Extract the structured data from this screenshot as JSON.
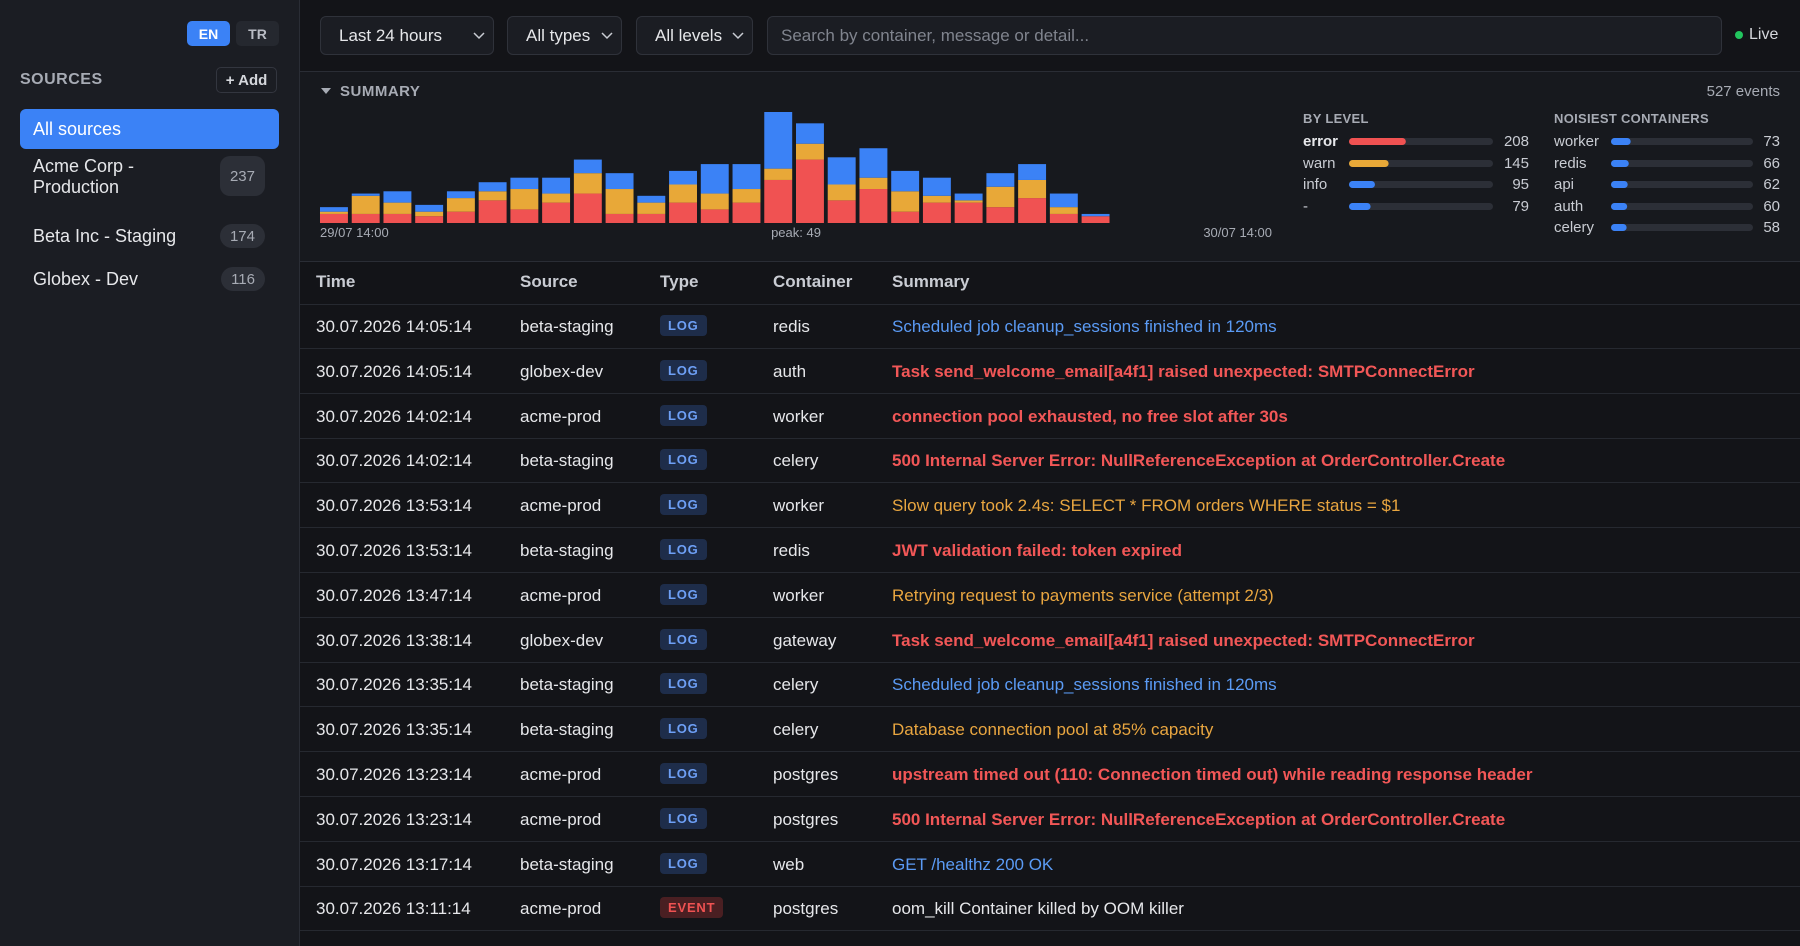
{
  "language": {
    "options": [
      "EN",
      "TR"
    ],
    "active": 0
  },
  "sidebar": {
    "title": "SOURCES",
    "add": "+ Add",
    "all": "All sources",
    "sources": [
      {
        "name": "Acme Corp - Production",
        "count": 237
      },
      {
        "name": "Beta Inc - Staging",
        "count": 174
      },
      {
        "name": "Globex - Dev",
        "count": 116
      }
    ]
  },
  "filters": {
    "selects": [
      "Last 24 hours",
      "All types",
      "All levels"
    ],
    "search_placeholder": "Search by container, message or detail...",
    "live": "Live"
  },
  "summary": {
    "title": "SUMMARY",
    "total": {
      "value": 527,
      "label": "527 events"
    },
    "by_level": {
      "title": "BY LEVEL",
      "items": [
        {
          "name": "error",
          "count": 208,
          "color": "#f05252"
        },
        {
          "name": "warn",
          "count": 145,
          "color": "#e8a838"
        },
        {
          "name": "info",
          "count": 95,
          "color": "#3b82f6"
        },
        {
          "name": "-",
          "count": 79,
          "color": "#3b82f6"
        }
      ]
    },
    "noisiest": {
      "title": "NOISIEST CONTAINERS",
      "color": "#3b82f6",
      "items": [
        {
          "name": "worker",
          "count": 73
        },
        {
          "name": "redis",
          "count": 66
        },
        {
          "name": "api",
          "count": 62
        },
        {
          "name": "auth",
          "count": 60
        },
        {
          "name": "celery",
          "count": 58
        }
      ]
    }
  },
  "chart_data": {
    "type": "bar",
    "stacked": true,
    "x_start": "29/07 14:00",
    "x_end": "30/07 14:00",
    "peak": {
      "value": 49,
      "label": "peak: 49"
    },
    "series": [
      {
        "color": "#f05252",
        "values": [
          4,
          4,
          4,
          3,
          5,
          10,
          6,
          9,
          13,
          4,
          4,
          9,
          6,
          9,
          19,
          28,
          10,
          15,
          5,
          9,
          9,
          7,
          11,
          4,
          3,
          0,
          0,
          0,
          0,
          0
        ]
      },
      {
        "color": "#e8a838",
        "values": [
          1,
          8,
          5,
          2,
          6,
          4,
          9,
          4,
          9,
          11,
          5,
          8,
          7,
          6,
          5,
          7,
          7,
          5,
          9,
          3,
          1,
          9,
          8,
          3,
          0,
          0,
          0,
          0,
          0,
          0
        ]
      },
      {
        "color": "#3b82f6",
        "values": [
          2,
          1,
          5,
          3,
          3,
          4,
          5,
          7,
          6,
          7,
          3,
          6,
          13,
          11,
          25,
          9,
          12,
          13,
          9,
          8,
          3,
          6,
          7,
          6,
          1,
          0,
          0,
          0,
          0,
          0
        ]
      }
    ]
  },
  "table": {
    "columns": [
      "Time",
      "Source",
      "Type",
      "Container",
      "Summary"
    ],
    "rows": [
      {
        "time": "30.07.2026 14:05:14",
        "source": "beta-staging",
        "type": "LOG",
        "container": "redis",
        "summary": "Scheduled job cleanup_sessions finished in 120ms",
        "style": "info"
      },
      {
        "time": "30.07.2026 14:05:14",
        "source": "globex-dev",
        "type": "LOG",
        "container": "auth",
        "summary": "Task send_welcome_email[a4f1] raised unexpected: SMTPConnectError",
        "style": "error"
      },
      {
        "time": "30.07.2026 14:02:14",
        "source": "acme-prod",
        "type": "LOG",
        "container": "worker",
        "summary": "connection pool exhausted, no free slot after 30s",
        "style": "error"
      },
      {
        "time": "30.07.2026 14:02:14",
        "source": "beta-staging",
        "type": "LOG",
        "container": "celery",
        "summary": "500 Internal Server Error: NullReferenceException at OrderController.Create",
        "style": "error"
      },
      {
        "time": "30.07.2026 13:53:14",
        "source": "acme-prod",
        "type": "LOG",
        "container": "worker",
        "summary": "Slow query took 2.4s: SELECT * FROM orders WHERE status = $1",
        "style": "warn"
      },
      {
        "time": "30.07.2026 13:53:14",
        "source": "beta-staging",
        "type": "LOG",
        "container": "redis",
        "summary": "JWT validation failed: token expired",
        "style": "error"
      },
      {
        "time": "30.07.2026 13:47:14",
        "source": "acme-prod",
        "type": "LOG",
        "container": "worker",
        "summary": "Retrying request to payments service (attempt 2/3)",
        "style": "warn"
      },
      {
        "time": "30.07.2026 13:38:14",
        "source": "globex-dev",
        "type": "LOG",
        "container": "gateway",
        "summary": "Task send_welcome_email[a4f1] raised unexpected: SMTPConnectError",
        "style": "error"
      },
      {
        "time": "30.07.2026 13:35:14",
        "source": "beta-staging",
        "type": "LOG",
        "container": "celery",
        "summary": "Scheduled job cleanup_sessions finished in 120ms",
        "style": "info"
      },
      {
        "time": "30.07.2026 13:35:14",
        "source": "beta-staging",
        "type": "LOG",
        "container": "celery",
        "summary": "Database connection pool at 85% capacity",
        "style": "warn"
      },
      {
        "time": "30.07.2026 13:23:14",
        "source": "acme-prod",
        "type": "LOG",
        "container": "postgres",
        "summary": "upstream timed out (110: Connection timed out) while reading response header",
        "style": "error"
      },
      {
        "time": "30.07.2026 13:23:14",
        "source": "acme-prod",
        "type": "LOG",
        "container": "postgres",
        "summary": "500 Internal Server Error: NullReferenceException at OrderController.Create",
        "style": "error"
      },
      {
        "time": "30.07.2026 13:17:14",
        "source": "beta-staging",
        "type": "LOG",
        "container": "web",
        "summary": "GET /healthz 200 OK",
        "style": "info"
      },
      {
        "time": "30.07.2026 13:11:14",
        "source": "acme-prod",
        "type": "EVENT",
        "container": "postgres",
        "summary": "oom_kill Container killed by OOM killer",
        "style": "event"
      }
    ]
  }
}
